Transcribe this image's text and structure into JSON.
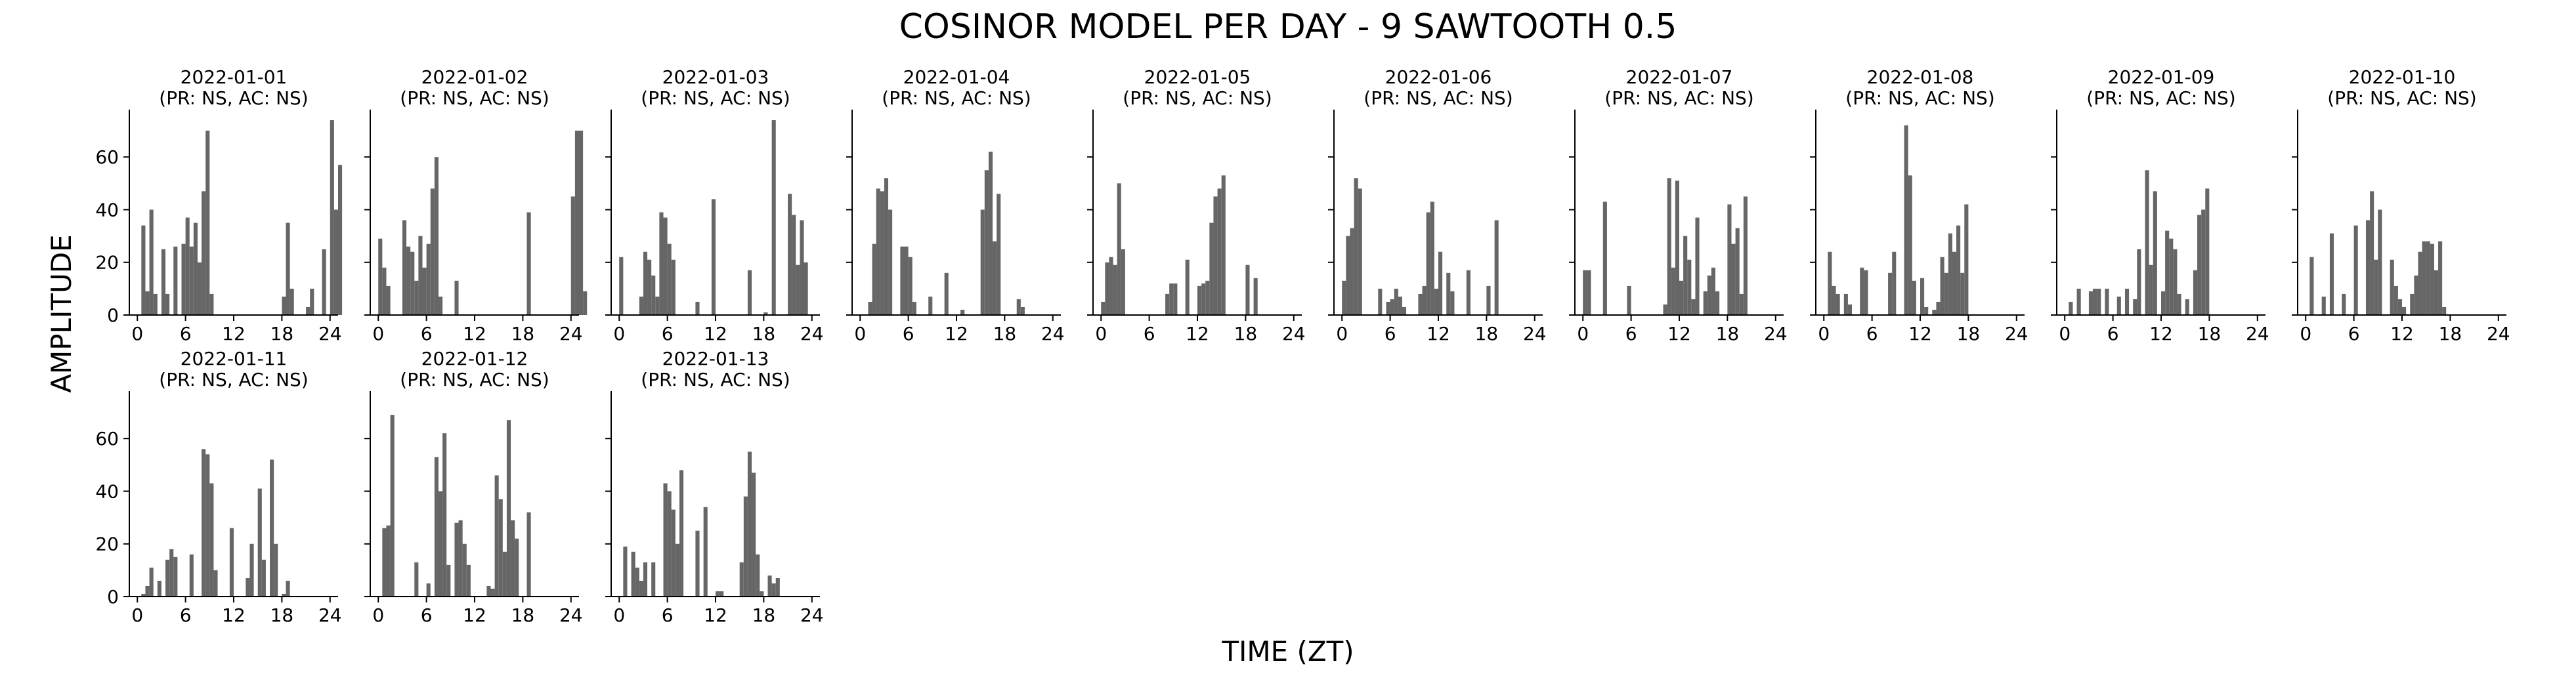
{
  "figure": {
    "title": "COSINOR MODEL PER DAY - 9 SAWTOOTH 0.5",
    "xlabel": "TIME (ZT)",
    "ylabel": "AMPLITUDE",
    "bar_color": "#666666"
  },
  "chart_data": [
    {
      "type": "bar",
      "title": "2022-01-01",
      "subtitle": "(PR: NS, AC: NS)",
      "xlim": [
        -1,
        25
      ],
      "ylim": [
        0,
        78
      ],
      "xticks": [
        0,
        6,
        12,
        18,
        24
      ],
      "yticks": [
        0,
        20,
        40,
        60
      ],
      "bin_width": 0.5,
      "values": [
        0,
        34,
        9,
        40,
        8,
        0,
        25,
        8,
        0,
        26,
        0,
        27,
        37,
        26,
        35,
        20,
        47,
        70,
        8,
        0,
        0,
        0,
        0,
        0,
        0,
        0,
        0,
        0,
        0,
        0,
        0,
        0,
        0,
        0,
        0,
        0,
        7,
        35,
        10,
        0,
        0,
        0,
        3,
        10,
        0,
        0,
        25,
        0,
        74,
        40,
        57,
        0
      ]
    },
    {
      "type": "bar",
      "title": "2022-01-02",
      "subtitle": "(PR: NS, AC: NS)",
      "xlim": [
        -1,
        25
      ],
      "ylim": [
        0,
        78
      ],
      "xticks": [
        0,
        6,
        12,
        18,
        24
      ],
      "yticks": [
        0,
        20,
        40,
        60
      ],
      "bin_width": 0.5,
      "values": [
        29,
        18,
        11,
        0,
        0,
        0,
        36,
        26,
        24,
        13,
        30,
        18,
        27,
        48,
        60,
        7,
        0,
        0,
        0,
        13,
        0,
        0,
        0,
        0,
        0,
        0,
        0,
        0,
        0,
        0,
        0,
        0,
        0,
        0,
        0,
        0,
        0,
        39,
        0,
        0,
        0,
        0,
        0,
        0,
        0,
        0,
        0,
        0,
        45,
        70,
        70,
        9
      ]
    },
    {
      "type": "bar",
      "title": "2022-01-03",
      "subtitle": "(PR: NS, AC: NS)",
      "xlim": [
        -1,
        25
      ],
      "ylim": [
        0,
        78
      ],
      "xticks": [
        0,
        6,
        12,
        18,
        24
      ],
      "yticks": [
        0,
        20,
        40,
        60
      ],
      "bin_width": 0.5,
      "values": [
        22,
        0,
        0,
        0,
        0,
        7,
        24,
        21,
        15,
        7,
        39,
        37,
        27,
        21,
        0,
        0,
        0,
        0,
        0,
        5,
        0,
        0,
        0,
        44,
        0,
        0,
        0,
        0,
        0,
        0,
        0,
        0,
        17,
        0,
        0,
        0,
        1,
        0,
        74,
        0,
        0,
        0,
        46,
        38,
        19,
        36,
        20,
        0
      ]
    },
    {
      "type": "bar",
      "title": "2022-01-04",
      "subtitle": "(PR: NS, AC: NS)",
      "xlim": [
        -1,
        25
      ],
      "ylim": [
        0,
        78
      ],
      "xticks": [
        0,
        6,
        12,
        18,
        24
      ],
      "yticks": [
        0,
        20,
        40,
        60
      ],
      "bin_width": 0.5,
      "values": [
        0,
        0,
        5,
        27,
        48,
        47,
        52,
        40,
        0,
        0,
        26,
        26,
        22,
        5,
        0,
        0,
        0,
        7,
        0,
        0,
        0,
        16,
        0,
        0,
        0,
        2,
        0,
        0,
        0,
        0,
        40,
        55,
        62,
        28,
        46,
        0,
        0,
        0,
        0,
        6,
        3,
        0
      ]
    },
    {
      "type": "bar",
      "title": "2022-01-05",
      "subtitle": "(PR: NS, AC: NS)",
      "xlim": [
        -1,
        25
      ],
      "ylim": [
        0,
        78
      ],
      "xticks": [
        0,
        6,
        12,
        18,
        24
      ],
      "yticks": [
        0,
        20,
        40,
        60
      ],
      "bin_width": 0.5,
      "values": [
        5,
        20,
        22,
        19,
        50,
        25,
        0,
        0,
        0,
        0,
        0,
        0,
        0,
        0,
        0,
        0,
        8,
        12,
        12,
        0,
        0,
        21,
        0,
        0,
        11,
        12,
        13,
        35,
        45,
        48,
        53,
        0,
        0,
        0,
        0,
        0,
        19,
        0,
        14,
        0
      ]
    },
    {
      "type": "bar",
      "title": "2022-01-06",
      "subtitle": "(PR: NS, AC: NS)",
      "xlim": [
        -1,
        25
      ],
      "ylim": [
        0,
        78
      ],
      "xticks": [
        0,
        6,
        12,
        18,
        24
      ],
      "yticks": [
        0,
        20,
        40,
        60
      ],
      "bin_width": 0.5,
      "values": [
        13,
        30,
        33,
        52,
        48,
        0,
        0,
        0,
        0,
        10,
        0,
        5,
        6,
        10,
        7,
        3,
        0,
        0,
        0,
        8,
        11,
        39,
        43,
        10,
        24,
        0,
        16,
        9,
        0,
        0,
        0,
        17,
        0,
        0,
        0,
        0,
        11,
        0,
        36,
        0
      ]
    },
    {
      "type": "bar",
      "title": "2022-01-07",
      "subtitle": "(PR: NS, AC: NS)",
      "xlim": [
        -1,
        25
      ],
      "ylim": [
        0,
        78
      ],
      "xticks": [
        0,
        6,
        12,
        18,
        24
      ],
      "yticks": [
        0,
        20,
        40,
        60
      ],
      "bin_width": 0.5,
      "values": [
        17,
        17,
        0,
        0,
        0,
        43,
        0,
        0,
        0,
        0,
        0,
        11,
        0,
        0,
        0,
        0,
        0,
        0,
        0,
        0,
        4,
        52,
        18,
        51,
        13,
        30,
        21,
        6,
        37,
        0,
        9,
        15,
        18,
        9,
        0,
        0,
        42,
        27,
        33,
        8,
        45,
        0
      ]
    },
    {
      "type": "bar",
      "title": "2022-01-08",
      "subtitle": "(PR: NS, AC: NS)",
      "xlim": [
        -1,
        25
      ],
      "ylim": [
        0,
        78
      ],
      "xticks": [
        0,
        6,
        12,
        18,
        24
      ],
      "yticks": [
        0,
        20,
        40,
        60
      ],
      "bin_width": 0.5,
      "values": [
        0,
        24,
        11,
        8,
        0,
        8,
        4,
        0,
        0,
        18,
        17,
        0,
        0,
        0,
        0,
        0,
        16,
        24,
        0,
        0,
        72,
        53,
        13,
        0,
        14,
        3,
        0,
        2,
        5,
        22,
        16,
        31,
        24,
        34,
        16,
        42,
        0,
        0,
        0,
        0,
        0
      ]
    },
    {
      "type": "bar",
      "title": "2022-01-09",
      "subtitle": "(PR: NS, AC: NS)",
      "xlim": [
        -1,
        25
      ],
      "ylim": [
        0,
        78
      ],
      "xticks": [
        0,
        6,
        12,
        18,
        24
      ],
      "yticks": [
        0,
        20,
        40,
        60
      ],
      "bin_width": 0.5,
      "values": [
        0,
        5,
        0,
        10,
        0,
        0,
        9,
        10,
        10,
        0,
        10,
        0,
        0,
        7,
        0,
        10,
        0,
        6,
        25,
        0,
        55,
        19,
        47,
        0,
        9,
        32,
        29,
        25,
        8,
        0,
        6,
        0,
        17,
        38,
        40,
        48,
        0,
        0,
        0,
        0,
        0
      ]
    },
    {
      "type": "bar",
      "title": "2022-01-10",
      "subtitle": "(PR: NS, AC: NS)",
      "xlim": [
        -1,
        25
      ],
      "ylim": [
        0,
        78
      ],
      "xticks": [
        0,
        6,
        12,
        18,
        24
      ],
      "yticks": [
        0,
        20,
        40,
        60
      ],
      "bin_width": 0.5,
      "values": [
        0,
        22,
        0,
        0,
        7,
        0,
        31,
        0,
        0,
        8,
        0,
        0,
        34,
        0,
        0,
        36,
        47,
        21,
        40,
        0,
        0,
        21,
        11,
        6,
        3,
        0,
        8,
        15,
        24,
        28,
        28,
        27,
        17,
        28,
        3,
        0,
        0
      ]
    }
  ],
  "chart_data_row2": [
    {
      "type": "bar",
      "title": "2022-01-11",
      "subtitle": "(PR: NS, AC: NS)",
      "xlim": [
        -1,
        25
      ],
      "ylim": [
        0,
        78
      ],
      "xticks": [
        0,
        6,
        12,
        18,
        24
      ],
      "yticks": [
        0,
        20,
        40,
        60
      ],
      "bin_width": 0.5,
      "values": [
        0,
        1,
        4,
        11,
        0,
        6,
        0,
        14,
        18,
        15,
        0,
        0,
        0,
        16,
        0,
        0,
        56,
        54,
        43,
        10,
        0,
        0,
        0,
        26,
        0,
        0,
        0,
        7,
        20,
        0,
        41,
        14,
        0,
        52,
        20,
        0,
        1,
        6,
        0,
        0
      ]
    },
    {
      "type": "bar",
      "title": "2022-01-12",
      "subtitle": "(PR: NS, AC: NS)",
      "xlim": [
        -1,
        25
      ],
      "ylim": [
        0,
        78
      ],
      "xticks": [
        0,
        6,
        12,
        18,
        24
      ],
      "yticks": [
        0,
        20,
        40,
        60
      ],
      "bin_width": 0.5,
      "values": [
        0,
        26,
        27,
        69,
        0,
        0,
        0,
        0,
        0,
        13,
        0,
        0,
        5,
        0,
        53,
        40,
        62,
        12,
        0,
        28,
        29,
        20,
        12,
        0,
        0,
        0,
        0,
        4,
        3,
        46,
        37,
        17,
        67,
        29,
        22,
        0,
        0,
        32,
        0,
        0
      ]
    },
    {
      "type": "bar",
      "title": "2022-01-13",
      "subtitle": "(PR: NS, AC: NS)",
      "xlim": [
        -1,
        25
      ],
      "ylim": [
        0,
        78
      ],
      "xticks": [
        0,
        6,
        12,
        18,
        24
      ],
      "yticks": [
        0,
        20,
        40,
        60
      ],
      "bin_width": 0.5,
      "values": [
        0,
        19,
        0,
        17,
        11,
        6,
        13,
        0,
        13,
        0,
        0,
        43,
        40,
        33,
        20,
        48,
        0,
        0,
        0,
        25,
        0,
        34,
        0,
        0,
        2,
        2,
        0,
        0,
        0,
        0,
        13,
        38,
        55,
        47,
        16,
        2,
        0,
        8,
        5,
        7,
        0
      ]
    }
  ]
}
